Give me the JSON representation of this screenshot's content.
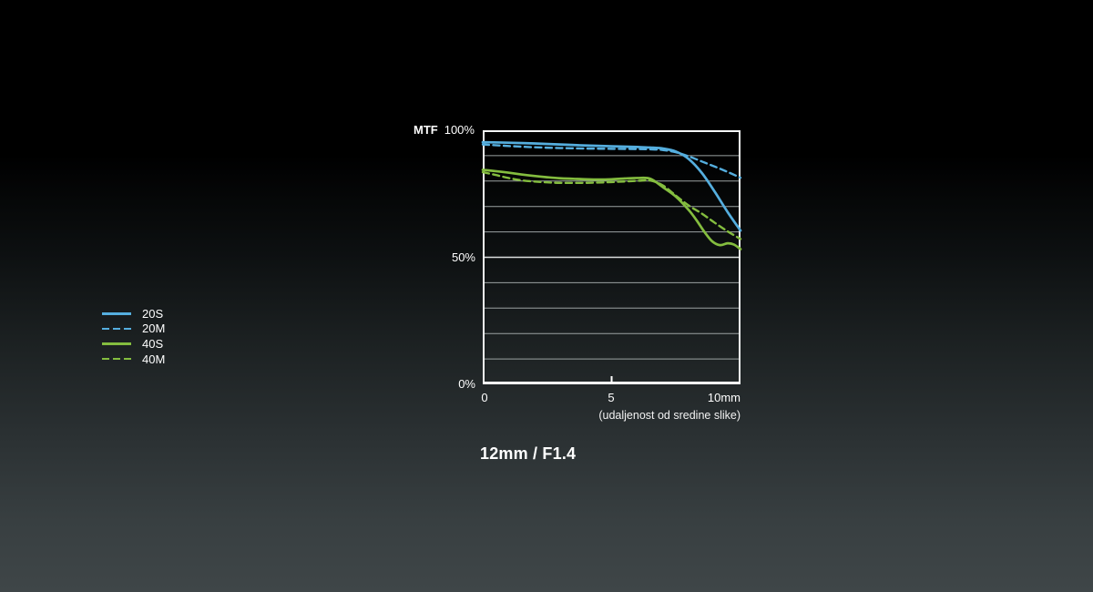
{
  "page": {
    "title": "12mm / F1.4",
    "background_top": "#000000",
    "background_bottom": "#3f4648"
  },
  "chart_data": {
    "type": "line",
    "title": "MTF chart",
    "grid": true,
    "legend_position": "left",
    "colors": {
      "blue": "#55aede",
      "green": "#84bd3f",
      "gridline": "#9ba2a2",
      "grid_50": "#dcdfdf",
      "border": "#f4f6f6"
    },
    "y_axis": {
      "label": "MTF",
      "min": 0,
      "max": 100,
      "grid_step": 10,
      "tick_labels": [
        "100%",
        "50%",
        "0%"
      ],
      "tick_values": [
        100,
        50,
        0
      ]
    },
    "x_axis": {
      "min": 0,
      "max": 10,
      "unit": "mm",
      "tick_labels": [
        "0",
        "5",
        "10mm"
      ],
      "tick_values": [
        0,
        5,
        10
      ],
      "caption": "(udaljenost od sredine slike)"
    },
    "series": [
      {
        "name": "20S",
        "style": "solid",
        "color": "#55aede",
        "x": [
          0,
          1,
          2,
          3,
          4,
          5,
          6,
          6.5,
          7,
          7.5,
          8,
          8.5,
          9,
          9.5,
          10
        ],
        "y": [
          95.3,
          95.1,
          94.8,
          94.4,
          94.0,
          93.7,
          93.4,
          93.2,
          92.8,
          91.6,
          88.6,
          83.2,
          75.8,
          67.8,
          60.5
        ]
      },
      {
        "name": "20M",
        "style": "dashed",
        "color": "#55aede",
        "x": [
          0,
          1,
          2,
          3,
          4,
          5,
          6,
          6.5,
          7,
          7.5,
          8,
          8.5,
          9,
          9.5,
          10
        ],
        "y": [
          94.4,
          93.8,
          93.3,
          93.0,
          92.8,
          92.7,
          92.6,
          92.5,
          92.2,
          91.3,
          89.7,
          87.7,
          85.7,
          83.6,
          81.3
        ]
      },
      {
        "name": "40S",
        "style": "solid",
        "color": "#84bd3f",
        "x": [
          0,
          0.5,
          1,
          1.5,
          2,
          2.5,
          3,
          3.5,
          4,
          4.5,
          5,
          5.5,
          6,
          6.5,
          7,
          7.5,
          8,
          8.3,
          8.6,
          8.9,
          9.2,
          9.5,
          9.75,
          10
        ],
        "y": [
          84.4,
          83.9,
          83.3,
          82.6,
          82.0,
          81.5,
          81.1,
          80.9,
          80.7,
          80.6,
          80.7,
          81.0,
          81.2,
          80.9,
          77.5,
          73.8,
          68.5,
          64.5,
          60.0,
          56.3,
          54.8,
          55.5,
          55.0,
          53.2
        ]
      },
      {
        "name": "40M",
        "style": "dashed",
        "color": "#84bd3f",
        "x": [
          0,
          0.5,
          1,
          1.5,
          2,
          2.5,
          3,
          4,
          5,
          6,
          6.5,
          7,
          7.5,
          8,
          8.5,
          9,
          9.5,
          10
        ],
        "y": [
          83.5,
          82.4,
          81.2,
          80.3,
          79.8,
          79.5,
          79.3,
          79.3,
          79.6,
          80.1,
          80.2,
          78.2,
          74.2,
          70.3,
          67.2,
          63.6,
          60.2,
          57.2
        ]
      }
    ]
  }
}
